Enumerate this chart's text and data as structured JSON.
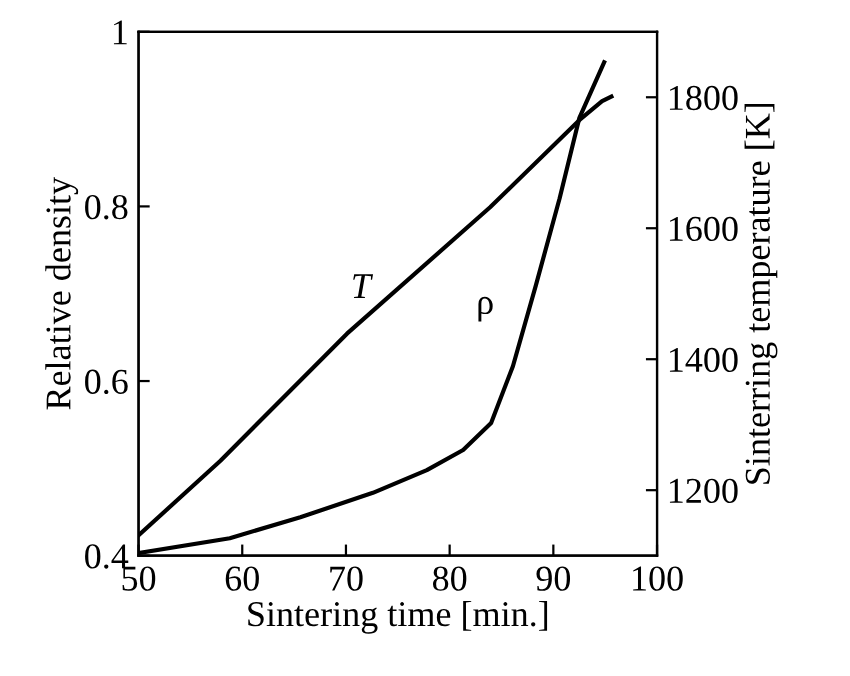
{
  "chart_data": {
    "type": "line",
    "xlabel": "Sintering time [min.]",
    "ylabel": "Relative density",
    "y2label": "Sinterring temperature [K]",
    "xlim": [
      50,
      100
    ],
    "xticks": [
      50,
      60,
      70,
      80,
      90,
      100
    ],
    "ylim": [
      0.4,
      1
    ],
    "yticks": [
      0.4,
      0.6,
      0.8,
      1
    ],
    "y2lim": [
      1100,
      1900
    ],
    "y2ticks": [
      1200,
      1400,
      1600,
      1800
    ],
    "grid": false,
    "legend": false,
    "marker": "none",
    "line_style": "solid",
    "series": [
      {
        "name": "T",
        "color": "#000000",
        "axis": "y2",
        "x": [
          50,
          57.9,
          70.1,
          83.9,
          92.5,
          94.7,
          95.6
        ],
        "values": [
          1131,
          1245,
          1439,
          1632,
          1765,
          1794,
          1801
        ]
      },
      {
        "name": "ρ",
        "color": "#000000",
        "axis": "y",
        "x": [
          50,
          58.8,
          65.6,
          72.6,
          77.8,
          81.3,
          84.0,
          86.1,
          88.3,
          90.6,
          92.5,
          94.9
        ],
        "values": [
          0.403,
          0.42,
          0.444,
          0.472,
          0.498,
          0.521,
          0.552,
          0.617,
          0.709,
          0.809,
          0.901,
          0.965
        ]
      }
    ]
  }
}
